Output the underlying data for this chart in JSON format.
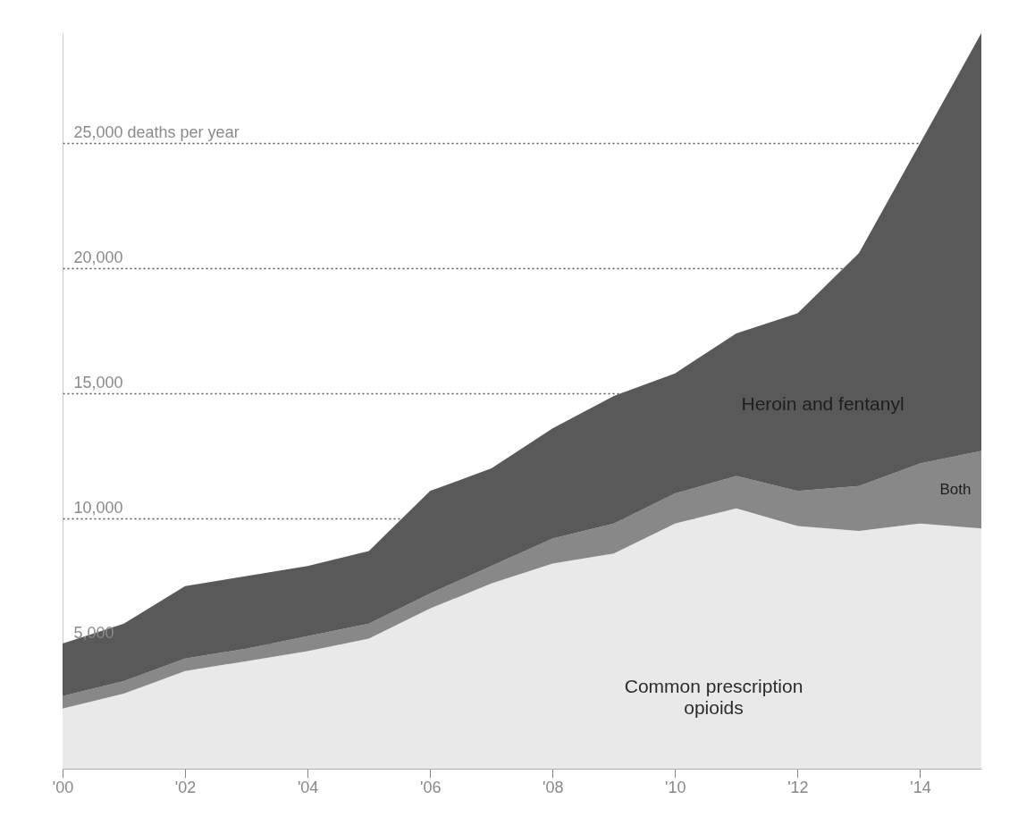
{
  "chart_data": {
    "type": "area",
    "stacked": true,
    "x": [
      2000,
      2001,
      2002,
      2003,
      2004,
      2005,
      2006,
      2007,
      2008,
      2009,
      2010,
      2011,
      2012,
      2013,
      2014,
      2015
    ],
    "series": [
      {
        "name": "Common prescription opioids",
        "color": "#e9e9e9",
        "values": [
          2400,
          3000,
          3900,
          4300,
          4700,
          5200,
          6400,
          7400,
          8200,
          8600,
          9800,
          10400,
          9700,
          9500,
          9800,
          9600
        ]
      },
      {
        "name": "Both",
        "color": "#888888",
        "values": [
          500,
          500,
          500,
          500,
          600,
          600,
          600,
          700,
          1000,
          1200,
          1200,
          1300,
          1400,
          1800,
          2400,
          3100
        ]
      },
      {
        "name": "Heroin and fentanyl",
        "color": "#595959",
        "values": [
          2100,
          2300,
          2900,
          2900,
          2800,
          2900,
          4100,
          3900,
          4400,
          5100,
          4800,
          5700,
          7100,
          9300,
          12800,
          16700
        ]
      }
    ],
    "xlim": [
      2000,
      2015
    ],
    "xticks": [
      {
        "value": 2000,
        "label": "'00"
      },
      {
        "value": 2002,
        "label": "'02"
      },
      {
        "value": 2004,
        "label": "'04"
      },
      {
        "value": 2006,
        "label": "'06"
      },
      {
        "value": 2008,
        "label": "'08"
      },
      {
        "value": 2010,
        "label": "'10"
      },
      {
        "value": 2012,
        "label": "'12"
      },
      {
        "value": 2014,
        "label": "'14"
      }
    ],
    "ylim": [
      0,
      29400
    ],
    "yticks": [
      {
        "value": 5000,
        "label": "5,000"
      },
      {
        "value": 10000,
        "label": "10,000"
      },
      {
        "value": 15000,
        "label": "15,000"
      },
      {
        "value": 20000,
        "label": "20,000"
      },
      {
        "value": 25000,
        "label": "25,000 deaths per year"
      }
    ],
    "grid": "y",
    "legend": false
  }
}
